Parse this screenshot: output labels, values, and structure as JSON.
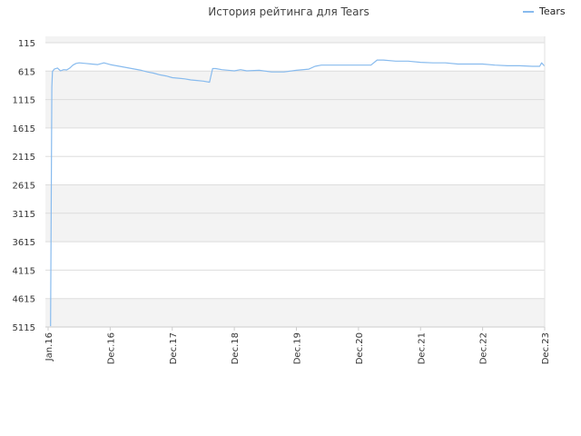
{
  "chart_data": {
    "type": "line",
    "title": "История рейтинга для Tears",
    "xlabel": "",
    "ylabel": "",
    "y_inverted": true,
    "ylim": [
      115,
      5115
    ],
    "y_ticks": [
      115,
      615,
      1115,
      1615,
      2115,
      2615,
      3115,
      3615,
      4115,
      4615,
      5115
    ],
    "x_tick_labels": [
      "Jan.16",
      "Dec.16",
      "Dec.17",
      "Dec.18",
      "Dec.19",
      "Dec.20",
      "Dec.21",
      "Dec.22",
      "Dec.23"
    ],
    "legend": {
      "position": "top-right",
      "entries": [
        "Tears"
      ]
    },
    "grid": {
      "horizontal": true,
      "alternating_bands": true
    },
    "colors": {
      "line": "#88bbee",
      "band": "#f3f3f3",
      "grid": "#dddddd",
      "axis": "#cccccc"
    },
    "series": [
      {
        "name": "Tears",
        "x": [
          0.04,
          0.06,
          0.07,
          0.1,
          0.15,
          0.2,
          0.25,
          0.3,
          0.35,
          0.4,
          0.45,
          0.5,
          0.6,
          0.7,
          0.8,
          0.9,
          1.0,
          1.1,
          1.2,
          1.3,
          1.4,
          1.5,
          1.6,
          1.7,
          1.8,
          1.9,
          2.0,
          2.1,
          2.2,
          2.3,
          2.4,
          2.5,
          2.6,
          2.65,
          2.7,
          2.8,
          3.0,
          3.1,
          3.2,
          3.4,
          3.6,
          3.8,
          4.0,
          4.2,
          4.3,
          4.4,
          4.6,
          4.8,
          5.0,
          5.2,
          5.3,
          5.4,
          5.6,
          5.8,
          6.0,
          6.2,
          6.4,
          6.6,
          6.8,
          7.0,
          7.2,
          7.4,
          7.6,
          7.8,
          7.92,
          7.95,
          8.0
        ],
        "y": [
          5100,
          900,
          620,
          580,
          560,
          610,
          590,
          595,
          560,
          510,
          480,
          470,
          480,
          490,
          500,
          470,
          500,
          520,
          540,
          560,
          580,
          600,
          630,
          650,
          680,
          700,
          730,
          740,
          750,
          770,
          780,
          790,
          810,
          570,
          570,
          590,
          610,
          590,
          610,
          600,
          630,
          630,
          600,
          580,
          530,
          510,
          510,
          510,
          510,
          510,
          420,
          420,
          440,
          440,
          460,
          470,
          470,
          490,
          490,
          490,
          510,
          520,
          520,
          530,
          530,
          470,
          530
        ]
      }
    ]
  }
}
